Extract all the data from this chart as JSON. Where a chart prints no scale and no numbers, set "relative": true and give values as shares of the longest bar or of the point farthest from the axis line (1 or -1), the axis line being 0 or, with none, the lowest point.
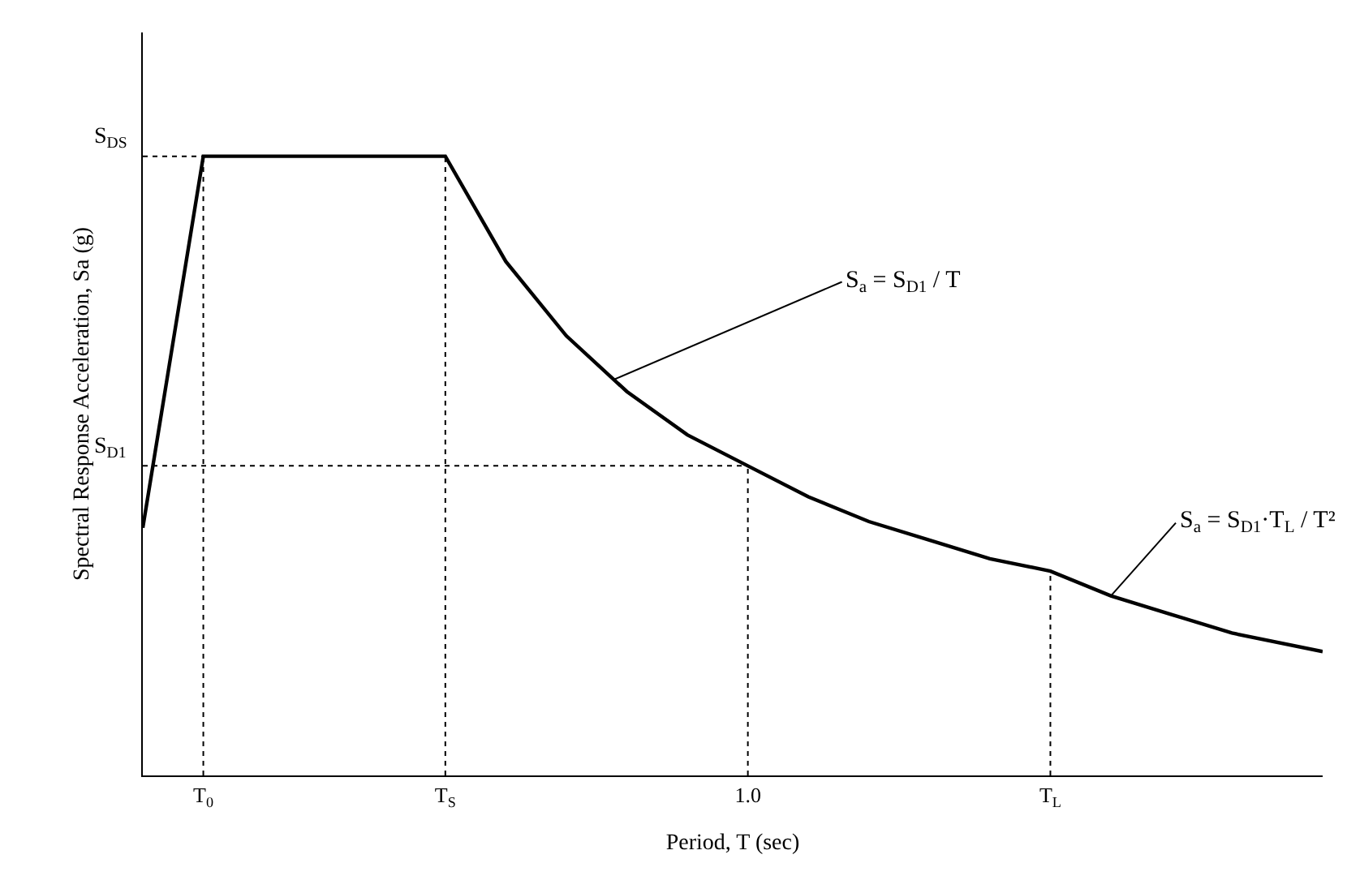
{
  "chart_data": {
    "type": "line",
    "relative": true,
    "xlabel": "Period, T (sec)",
    "ylabel": "Spectral Response Acceleration, Sa (g)",
    "x": [
      0,
      0.1,
      0.5,
      0.6,
      0.7,
      0.8,
      0.9,
      1.0,
      1.1,
      1.2,
      1.3,
      1.4,
      1.5,
      1.6,
      1.7,
      1.8,
      1.95
    ],
    "series": [
      {
        "color": "#000000",
        "values": [
          0.4,
          1,
          1,
          0.83,
          0.71,
          0.62,
          0.55,
          0.5,
          0.45,
          0.41,
          0.38,
          0.35,
          0.33,
          0.29,
          0.26,
          0.23,
          0.2
        ]
      }
    ],
    "xlim": [
      0,
      1.95
    ],
    "xticks": [
      {
        "value": 0.1,
        "label": "T$_{0}$"
      },
      {
        "value": 0.5,
        "label": "T$_{S}$"
      },
      {
        "value": 1.0,
        "label": "1.0"
      },
      {
        "value": 1.5,
        "label": "T$_{L}$"
      }
    ],
    "ref_lines": [
      {
        "axis": "y",
        "value": 1,
        "label": "S$_{DS}$",
        "line_style": "dotted"
      },
      {
        "axis": "y",
        "value": 0.5,
        "label": "S$_{D1}$",
        "line_style": "dotted"
      },
      {
        "axis": "x",
        "value": 0.1,
        "line_style": "dotted"
      },
      {
        "axis": "x",
        "value": 0.5,
        "line_style": "dotted"
      },
      {
        "axis": "x",
        "value": 1.0,
        "line_style": "dotted"
      },
      {
        "axis": "x",
        "value": 1.5,
        "line_style": "dotted"
      }
    ],
    "annotations": [
      {
        "text": "S$_{a}$ = S$_{D1}$ / T",
        "x": 0.78,
        "y": 0.64
      },
      {
        "text": "S$_{a}$ = S$_{D1}$·T$_{L}$ / T²",
        "x": 1.6,
        "y": 0.29
      }
    ],
    "marker": "none",
    "line_style": "solid"
  }
}
